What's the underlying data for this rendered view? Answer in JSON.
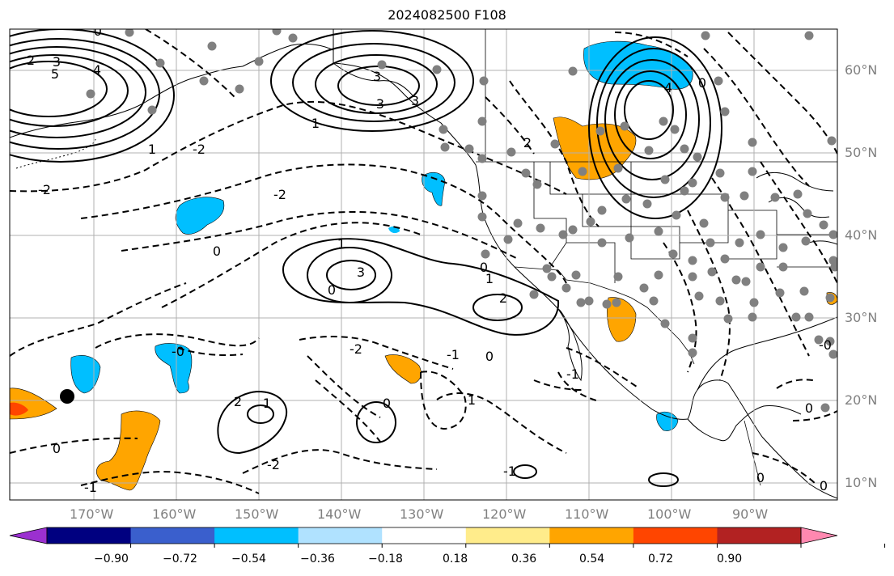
{
  "title": "2024082500 F108",
  "lat_labels": [
    "60°N",
    "50°N",
    "40°N",
    "30°N",
    "20°N",
    "10°N"
  ],
  "lon_labels": [
    "170°W",
    "160°W",
    "150°W",
    "140°W",
    "130°W",
    "120°W",
    "110°W",
    "100°W",
    "90°W"
  ],
  "contour_labels": [
    "-0",
    "3",
    "2",
    "5",
    "4",
    "1",
    "-2",
    "3",
    "3",
    "1",
    "2",
    "1",
    "0",
    "-2",
    "-2",
    "0",
    "1",
    "3",
    "2",
    "0",
    "1",
    "2",
    "-0",
    "-2",
    "-1",
    "0",
    "-1",
    "0",
    "1",
    "0",
    "-2",
    "-1",
    "-1",
    "0",
    "0",
    "0",
    "-0",
    "0",
    "3",
    "4"
  ],
  "colorbar": {
    "ticks": [
      "−0.90",
      "−0.72",
      "−0.54",
      "−0.36",
      "−0.18",
      "0.18",
      "0.36",
      "0.54",
      "0.72",
      "0.90"
    ],
    "colors": [
      "#9b30d0",
      "#000080",
      "#3a5fcd",
      "#00bfff",
      "#b0e2ff",
      "#ffffff",
      "#ffec8b",
      "#ffa500",
      "#ff4500",
      "#b22222",
      "#ff88b0"
    ]
  },
  "colors": {
    "positive_anomaly": "#ffa500",
    "negative_anomaly": "#00bfff",
    "stations": "#808080",
    "contours": "#000000",
    "grid": "#b0b0b0"
  },
  "icons": [
    "station-dot",
    "storm-marker"
  ]
}
